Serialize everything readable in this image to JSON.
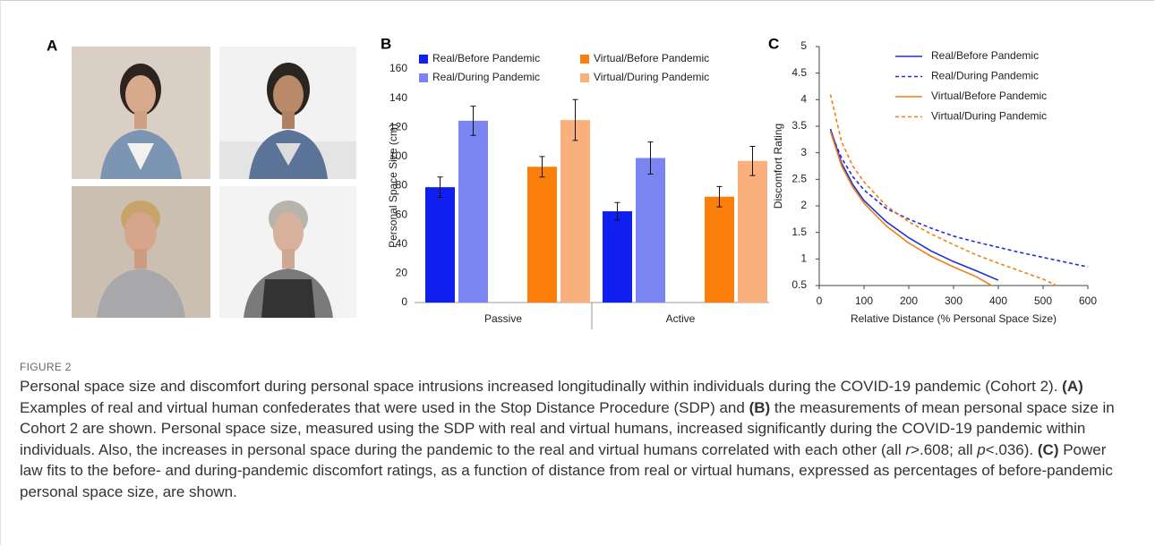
{
  "panel_labels": [
    "A",
    "B",
    "C"
  ],
  "chart_data": [
    {
      "type": "bar",
      "categories": [
        "Passive",
        "Active"
      ],
      "y_label": "Personal Space Size (cm)",
      "ylim": [
        0,
        160
      ],
      "yticks": [
        0,
        20,
        40,
        60,
        80,
        100,
        120,
        140,
        160
      ],
      "series": [
        {
          "name": "Real/Before Pandemic",
          "color": "#0f1ff0",
          "values": [
            79,
            62.5
          ],
          "errors": [
            7,
            6
          ]
        },
        {
          "name": "Real/During Pandemic",
          "color": "#7b85f2",
          "values": [
            124.5,
            99
          ],
          "errors": [
            10,
            11
          ]
        },
        {
          "name": "Virtual/Before Pandemic",
          "color": "#fa7f0a",
          "values": [
            93,
            72.5
          ],
          "errors": [
            7,
            7
          ]
        },
        {
          "name": "Virtual/During Pandemic",
          "color": "#f9b07c",
          "values": [
            125,
            97
          ],
          "errors": [
            14,
            10
          ]
        }
      ]
    },
    {
      "type": "line",
      "x_label": "Relative Distance (% Personal Space Size)",
      "y_label": "Discomfort Rating",
      "xlim": [
        0,
        600
      ],
      "xticks": [
        0,
        100,
        200,
        300,
        400,
        500,
        600
      ],
      "ylim": [
        0.5,
        5
      ],
      "yticks": [
        0.5,
        1,
        1.5,
        2,
        2.5,
        3,
        3.5,
        4,
        4.5,
        5
      ],
      "legend": "top-right",
      "series": [
        {
          "name": "Real/Before Pandemic",
          "color": "#1f2ed8",
          "dashed": false,
          "x": [
            25,
            50,
            75,
            100,
            150,
            200,
            250,
            300,
            350,
            400
          ],
          "values": [
            3.45,
            2.8,
            2.4,
            2.1,
            1.7,
            1.4,
            1.15,
            0.95,
            0.78,
            0.6
          ]
        },
        {
          "name": "Real/During Pandemic",
          "color": "#1f2ed8",
          "dashed": true,
          "x": [
            25,
            50,
            75,
            100,
            150,
            200,
            250,
            300,
            350,
            400,
            450,
            500,
            550,
            600
          ],
          "values": [
            3.4,
            2.9,
            2.55,
            2.3,
            1.95,
            1.75,
            1.58,
            1.43,
            1.32,
            1.22,
            1.12,
            1.03,
            0.94,
            0.85
          ]
        },
        {
          "name": "Virtual/Before Pandemic",
          "color": "#f07f14",
          "dashed": false,
          "x": [
            25,
            50,
            75,
            100,
            150,
            200,
            250,
            300,
            350,
            385
          ],
          "values": [
            3.4,
            2.75,
            2.35,
            2.05,
            1.62,
            1.3,
            1.05,
            0.85,
            0.67,
            0.5
          ]
        },
        {
          "name": "Virtual/During Pandemic",
          "color": "#f07f14",
          "dashed": true,
          "x": [
            25,
            50,
            75,
            100,
            150,
            200,
            250,
            300,
            350,
            400,
            450,
            500,
            530
          ],
          "values": [
            4.1,
            3.2,
            2.75,
            2.45,
            2.0,
            1.7,
            1.47,
            1.27,
            1.08,
            0.92,
            0.77,
            0.62,
            0.5
          ]
        }
      ]
    }
  ],
  "caption": {
    "label": "FIGURE 2",
    "text": [
      "Personal space size and discomfort during personal space intrusions increased longitudinally within individuals during the COVID-19 pandemic (Cohort 2). ",
      "(A)",
      " Examples of real and virtual human confederates that were used in the Stop Distance Procedure (SDP) and ",
      "(B)",
      " the measurements of mean personal space size in Cohort 2 are shown. Personal space size, measured using the SDP with real and virtual humans, increased significantly during the COVID-19 pandemic within individuals. Also, the increases in personal space during the pandemic to the real and virtual humans correlated with each other (all ",
      "r",
      ">.608; all ",
      "p",
      "<.036). ",
      "(C)",
      " Power law fits to the before- and during-pandemic discomfort ratings, as a function of distance from real or virtual humans, expressed as percentages of before-pandemic personal space size, are shown."
    ]
  }
}
